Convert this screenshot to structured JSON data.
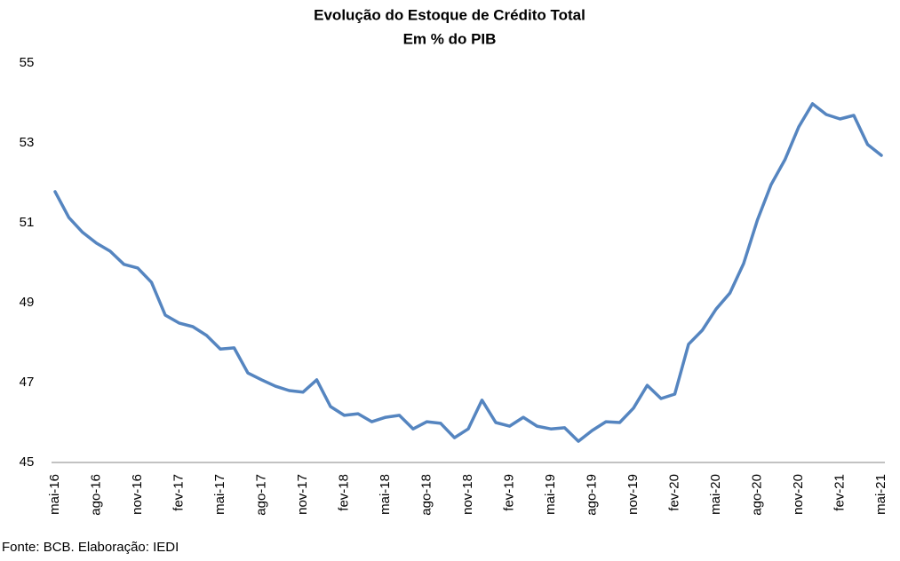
{
  "chart_data": {
    "type": "line",
    "title": "Evolução do Estoque de Crédito Total",
    "subtitle": "Em % do PIB",
    "source": "Fonte: BCB. Elaboração: IEDI",
    "categories": [
      "mai-16",
      null,
      null,
      "ago-16",
      null,
      null,
      "nov-16",
      null,
      null,
      "fev-17",
      null,
      null,
      "mai-17",
      null,
      null,
      "ago-17",
      null,
      null,
      "nov-17",
      null,
      null,
      "fev-18",
      null,
      null,
      "mai-18",
      null,
      null,
      "ago-18",
      null,
      null,
      "nov-18",
      null,
      null,
      "fev-19",
      null,
      null,
      "mai-19",
      null,
      null,
      "ago-19",
      null,
      null,
      "nov-19",
      null,
      null,
      "fev-20",
      null,
      null,
      "mai-20",
      null,
      null,
      "ago-20",
      null,
      null,
      "nov-20",
      null,
      null,
      "fev-21",
      null,
      null,
      "mai-21"
    ],
    "series": [
      {
        "name": "Estoque de Crédito Total",
        "color": "#5585c0",
        "values": [
          51.78,
          51.13,
          50.76,
          50.49,
          50.29,
          49.96,
          49.87,
          49.51,
          48.69,
          48.49,
          48.4,
          48.18,
          47.84,
          47.87,
          47.24,
          47.07,
          46.91,
          46.8,
          46.76,
          47.07,
          46.4,
          46.18,
          46.22,
          46.02,
          46.13,
          46.18,
          45.84,
          46.02,
          45.98,
          45.62,
          45.84,
          46.56,
          46.0,
          45.91,
          46.13,
          45.91,
          45.84,
          45.87,
          45.53,
          45.8,
          46.02,
          46.0,
          46.36,
          46.93,
          46.6,
          46.71,
          47.96,
          48.31,
          48.84,
          49.24,
          49.98,
          51.07,
          51.96,
          52.58,
          53.4,
          53.98,
          53.71,
          53.6,
          53.69,
          52.96,
          52.69
        ]
      }
    ],
    "ylim": [
      45,
      55
    ],
    "yticks": [
      45,
      47,
      49,
      51,
      53,
      55
    ],
    "grid": false
  }
}
